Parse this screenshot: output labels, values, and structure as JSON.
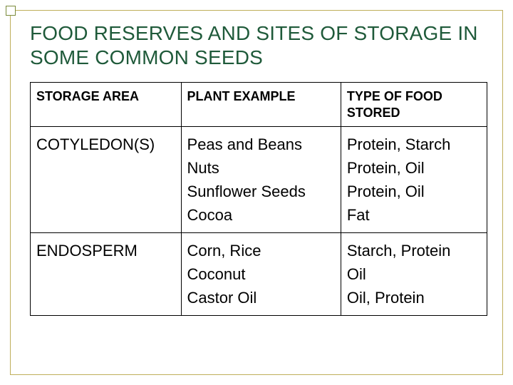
{
  "title": "FOOD RESERVES AND SITES OF STORAGE IN SOME COMMON SEEDS",
  "colors": {
    "title": "#1f5a3a",
    "frame": "#bfae5a",
    "accent_border": "#7a8a3a",
    "text": "#000000",
    "border": "#000000",
    "background": "#ffffff"
  },
  "typography": {
    "title_fontsize": 28,
    "header_fontsize": 18,
    "cell_fontsize": 22,
    "header_weight": 700,
    "cell_weight": 400,
    "font_family": "Arial"
  },
  "table": {
    "type": "table",
    "columns": [
      {
        "label": "STORAGE AREA",
        "width_pct": 33
      },
      {
        "label": "PLANT EXAMPLE",
        "width_pct": 35
      },
      {
        "label": "TYPE OF FOOD STORED",
        "width_pct": 32
      }
    ],
    "rows": [
      {
        "storage_area": "COTYLEDON(S)",
        "plant_examples": [
          "Peas and Beans",
          "Nuts",
          "Sunflower Seeds",
          "Cocoa"
        ],
        "food_types": [
          "Protein, Starch",
          "Protein, Oil",
          "Protein, Oil",
          "Fat"
        ]
      },
      {
        "storage_area": "ENDOSPERM",
        "plant_examples": [
          "Corn, Rice",
          "Coconut",
          "Castor Oil"
        ],
        "food_types": [
          "Starch, Protein",
          "Oil",
          "Oil, Protein"
        ]
      }
    ]
  }
}
